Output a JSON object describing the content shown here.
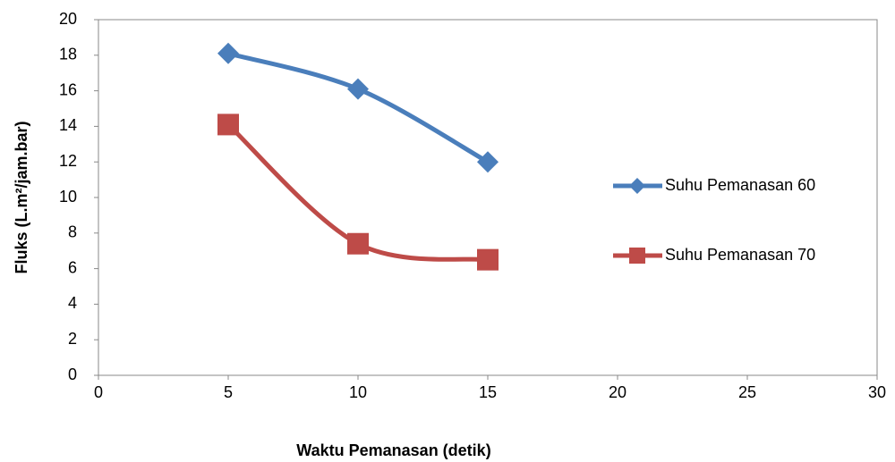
{
  "chart_data": {
    "type": "scatter",
    "smooth": true,
    "xlabel": "Waktu Pemanasan (detik)",
    "ylabel": "Fluks (L.m²/jam.bar)",
    "xlim": [
      0,
      30
    ],
    "xticks": [
      0,
      5,
      10,
      15,
      20,
      25,
      30
    ],
    "ylim": [
      0,
      20
    ],
    "yticks": [
      0,
      2,
      4,
      6,
      8,
      10,
      12,
      14,
      16,
      18,
      20
    ],
    "grid": false,
    "legend": "right",
    "series": [
      {
        "name": "Suhu Pemanasan 60",
        "color": "#4a7ebb",
        "marker": "diamond",
        "x": [
          5,
          10,
          15
        ],
        "values": [
          18.1,
          16.1,
          12.0
        ]
      },
      {
        "name": "Suhu Pemanasan 70",
        "color": "#be4b48",
        "marker": "square",
        "x": [
          5,
          10,
          15
        ],
        "values": [
          14.1,
          7.4,
          6.5
        ]
      }
    ]
  }
}
